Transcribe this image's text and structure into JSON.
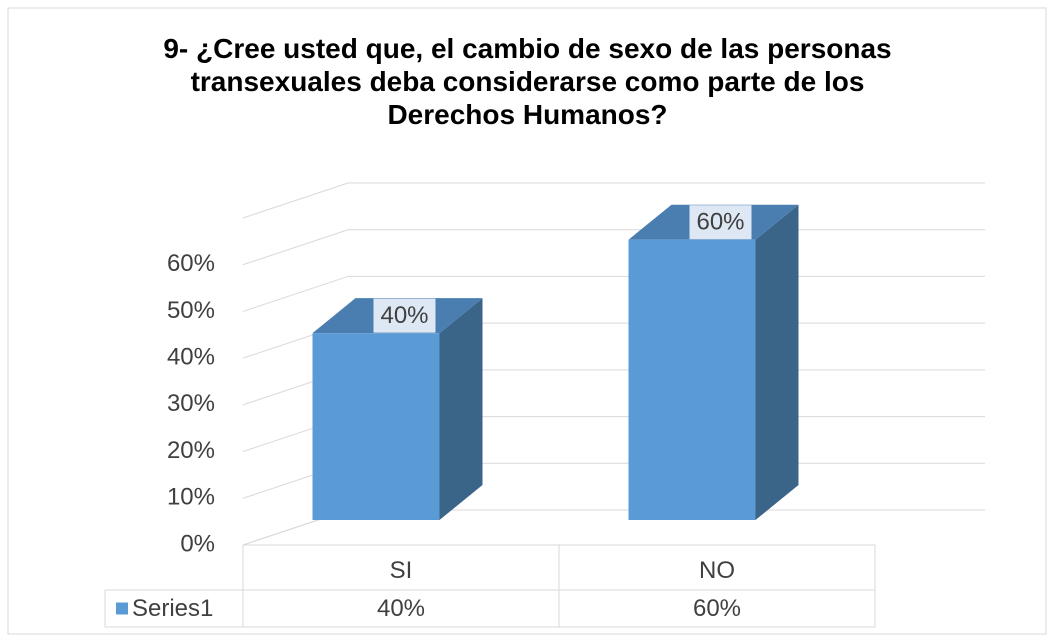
{
  "chart_data": {
    "type": "bar3d",
    "title": "9- ¿Cree usted que, el cambio de sexo de las personas transexuales deba considerarse como parte de los Derechos Humanos?",
    "categories": [
      "SI",
      "NO"
    ],
    "series": [
      {
        "name": "Series1",
        "color": "#5b9bd5",
        "values": [
          40,
          60
        ],
        "value_labels": [
          "40%",
          "60%"
        ]
      }
    ],
    "ylim": [
      0,
      70
    ],
    "yticks": [
      {
        "value": 0,
        "label": "0%"
      },
      {
        "value": 10,
        "label": "10%"
      },
      {
        "value": 20,
        "label": "20%"
      },
      {
        "value": 30,
        "label": "30%"
      },
      {
        "value": 40,
        "label": "40%"
      },
      {
        "value": 50,
        "label": "50%"
      },
      {
        "value": 60,
        "label": "60%"
      }
    ],
    "grid": true,
    "data_table": true
  }
}
